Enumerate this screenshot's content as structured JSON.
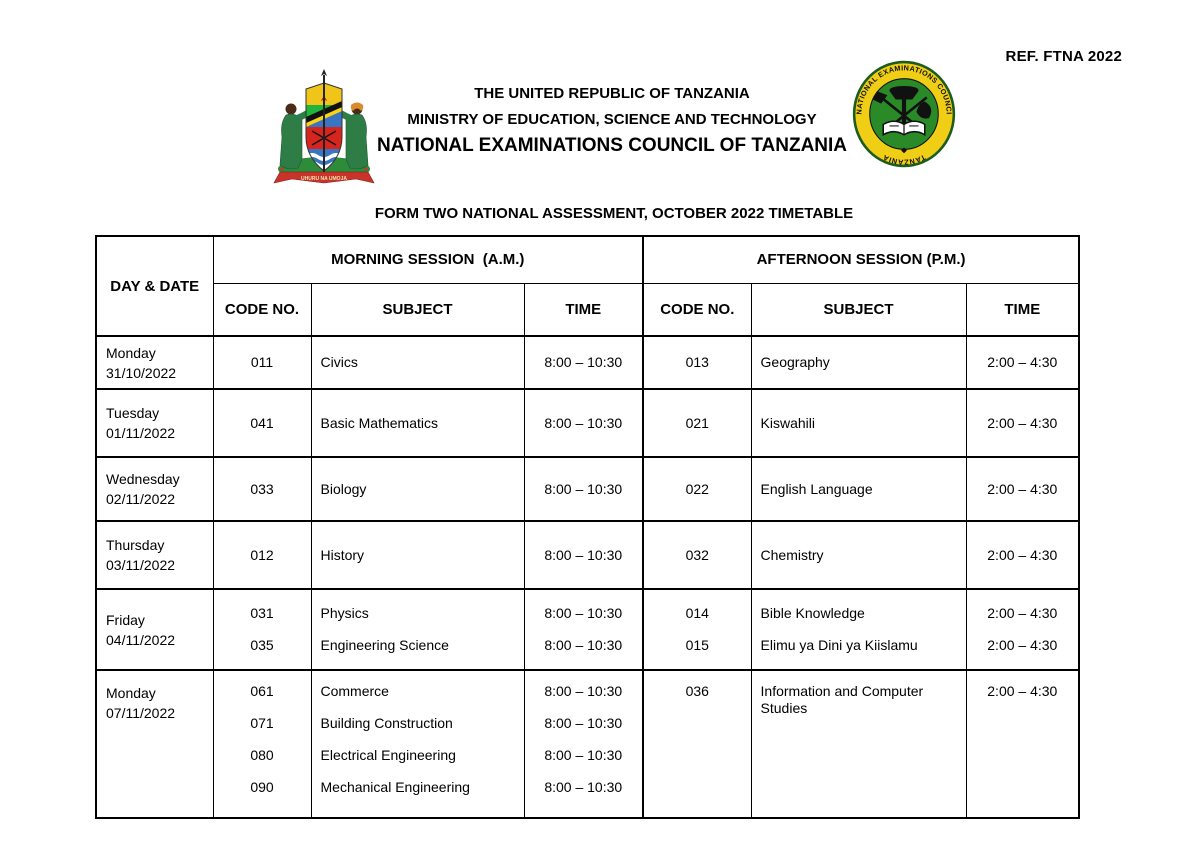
{
  "ref_label": "REF. FTNA 2022",
  "header": {
    "line1": "THE UNITED REPUBLIC OF TANZANIA",
    "line2": "MINISTRY OF EDUCATION, SCIENCE AND TECHNOLOGY",
    "line3": "NATIONAL EXAMINATIONS COUNCIL OF TANZANIA"
  },
  "logos": {
    "coat_of_arms_name": "tanzania-coat-of-arms",
    "coat_of_arms_motto": "UHURU NA UMOJA",
    "seal_name": "necta-council-seal",
    "seal_text_top": "THE NATIONAL EXAMINATIONS COUNCIL OF",
    "seal_text_bottom": "TANZANIA"
  },
  "title": "FORM TWO NATIONAL ASSESSMENT, OCTOBER 2022 TIMETABLE",
  "table": {
    "col_day": "DAY & DATE",
    "session_morning": "MORNING SESSION  (A.M.)",
    "session_afternoon": "AFTERNOON SESSION (P.M.)",
    "col_code": "CODE NO.",
    "col_subject": "SUBJECT",
    "col_time": "TIME",
    "rows": [
      {
        "day": "Monday",
        "date": "31/10/2022",
        "morning": [
          {
            "code": "011",
            "subject": "Civics",
            "time": "8:00 – 10:30"
          }
        ],
        "afternoon": [
          {
            "code": "013",
            "subject": "Geography",
            "time": "2:00 – 4:30"
          }
        ]
      },
      {
        "day": "Tuesday",
        "date": "01/11/2022",
        "morning": [
          {
            "code": "041",
            "subject": "Basic Mathematics",
            "time": "8:00 – 10:30"
          }
        ],
        "afternoon": [
          {
            "code": "021",
            "subject": "Kiswahili",
            "time": "2:00 – 4:30"
          }
        ]
      },
      {
        "day": "Wednesday",
        "date": "02/11/2022",
        "morning": [
          {
            "code": "033",
            "subject": "Biology",
            "time": "8:00 – 10:30"
          }
        ],
        "afternoon": [
          {
            "code": "022",
            "subject": "English Language",
            "time": "2:00 – 4:30"
          }
        ]
      },
      {
        "day": "Thursday",
        "date": "03/11/2022",
        "morning": [
          {
            "code": "012",
            "subject": "History",
            "time": "8:00 – 10:30"
          }
        ],
        "afternoon": [
          {
            "code": "032",
            "subject": "Chemistry",
            "time": "2:00 – 4:30"
          }
        ]
      },
      {
        "day": "Friday",
        "date": "04/11/2022",
        "morning": [
          {
            "code": "031",
            "subject": "Physics",
            "time": "8:00 – 10:30"
          },
          {
            "code": "035",
            "subject": "Engineering Science",
            "time": "8:00 – 10:30"
          }
        ],
        "afternoon": [
          {
            "code": "014",
            "subject": "Bible Knowledge",
            "time": "2:00 – 4:30"
          },
          {
            "code": "015",
            "subject": "Elimu ya Dini ya Kiislamu",
            "time": "2:00 – 4:30"
          }
        ]
      },
      {
        "day": "Monday",
        "date": "07/11/2022",
        "morning": [
          {
            "code": "061",
            "subject": "Commerce",
            "time": "8:00 – 10:30"
          },
          {
            "code": "071",
            "subject": "Building Construction",
            "time": "8:00 – 10:30"
          },
          {
            "code": "080",
            "subject": "Electrical Engineering",
            "time": "8:00 – 10:30"
          },
          {
            "code": "090",
            "subject": "Mechanical Engineering",
            "time": "8:00 – 10:30"
          }
        ],
        "afternoon": [
          {
            "code": "036",
            "subject": "Information and Computer Studies",
            "time": "2:00 – 4:30"
          }
        ]
      }
    ]
  },
  "colors": {
    "seal_yellow": "#F0CE15",
    "seal_ring_green": "#1C5C1C",
    "seal_green": "#2A8A28",
    "emblem_green": "#2E7D46",
    "emblem_mound": "#2E8B3A",
    "emblem_gold": "#F0C419",
    "flag_green": "#1EB53A",
    "flag_yellow": "#FCD116",
    "flag_blue": "#3A75C4",
    "emblem_red": "#D7251D",
    "ribbon_red": "#C8342A",
    "skin_brown": "#4A2B17",
    "hair_orange": "#D98C2B"
  }
}
